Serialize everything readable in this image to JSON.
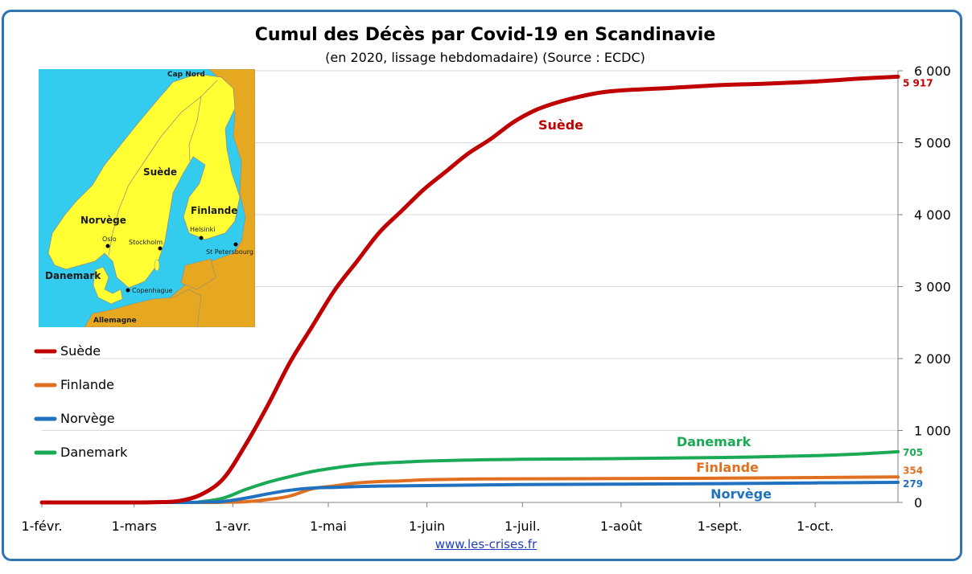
{
  "chart_data": {
    "type": "line",
    "title": "Cumul des Décès par Covid-19 en Scandinavie",
    "subtitle": "(en 2020, lissage hebdomadaire) (Source : ECDC)",
    "x_tick_labels": [
      "1-févr.",
      "1-mars",
      "1-avr.",
      "1-mai",
      "1-juin",
      "1-juil.",
      "1-août",
      "1-sept.",
      "1-oct."
    ],
    "x_tick_dates": [
      "2020-02-01",
      "2020-03-01",
      "2020-04-01",
      "2020-05-01",
      "2020-06-01",
      "2020-07-01",
      "2020-08-01",
      "2020-09-01",
      "2020-10-01"
    ],
    "x_range": [
      "2020-02-01",
      "2020-10-27"
    ],
    "y_axis_side": "right",
    "ylim": [
      0,
      6000
    ],
    "y_ticks": [
      0,
      1000,
      2000,
      3000,
      4000,
      5000,
      6000
    ],
    "y_tick_labels": [
      "0",
      "1 000",
      "2 000",
      "3 000",
      "4 000",
      "5 000",
      "6 000"
    ],
    "grid": "horizontal",
    "legend_position": "left",
    "series": [
      {
        "name": "Suède",
        "color": "#c00000",
        "inline_label": "Suède",
        "end_label": "5 917",
        "points": [
          [
            "2020-02-01",
            0
          ],
          [
            "2020-03-01",
            0
          ],
          [
            "2020-03-08",
            5
          ],
          [
            "2020-03-15",
            20
          ],
          [
            "2020-03-22",
            110
          ],
          [
            "2020-03-29",
            330
          ],
          [
            "2020-04-05",
            800
          ],
          [
            "2020-04-12",
            1350
          ],
          [
            "2020-04-19",
            1950
          ],
          [
            "2020-04-26",
            2450
          ],
          [
            "2020-05-03",
            2950
          ],
          [
            "2020-05-10",
            3350
          ],
          [
            "2020-05-17",
            3750
          ],
          [
            "2020-05-24",
            4050
          ],
          [
            "2020-05-31",
            4350
          ],
          [
            "2020-06-07",
            4600
          ],
          [
            "2020-06-14",
            4850
          ],
          [
            "2020-06-21",
            5050
          ],
          [
            "2020-06-28",
            5280
          ],
          [
            "2020-07-05",
            5450
          ],
          [
            "2020-07-12",
            5560
          ],
          [
            "2020-07-19",
            5640
          ],
          [
            "2020-07-26",
            5700
          ],
          [
            "2020-08-02",
            5730
          ],
          [
            "2020-08-16",
            5760
          ],
          [
            "2020-09-01",
            5800
          ],
          [
            "2020-09-15",
            5820
          ],
          [
            "2020-10-01",
            5850
          ],
          [
            "2020-10-15",
            5890
          ],
          [
            "2020-10-27",
            5917
          ]
        ]
      },
      {
        "name": "Finlande",
        "color": "#e07020",
        "inline_label": "Finlande",
        "end_label": "354",
        "points": [
          [
            "2020-02-01",
            0
          ],
          [
            "2020-03-22",
            0
          ],
          [
            "2020-03-29",
            3
          ],
          [
            "2020-04-05",
            10
          ],
          [
            "2020-04-12",
            40
          ],
          [
            "2020-04-19",
            90
          ],
          [
            "2020-04-26",
            190
          ],
          [
            "2020-05-03",
            230
          ],
          [
            "2020-05-10",
            270
          ],
          [
            "2020-05-17",
            290
          ],
          [
            "2020-05-24",
            300
          ],
          [
            "2020-06-01",
            315
          ],
          [
            "2020-06-15",
            325
          ],
          [
            "2020-07-01",
            328
          ],
          [
            "2020-08-01",
            333
          ],
          [
            "2020-09-01",
            337
          ],
          [
            "2020-10-01",
            346
          ],
          [
            "2020-10-27",
            354
          ]
        ]
      },
      {
        "name": "Norvège",
        "color": "#2072c0",
        "inline_label": "Norvège",
        "end_label": "279",
        "points": [
          [
            "2020-02-01",
            0
          ],
          [
            "2020-03-15",
            0
          ],
          [
            "2020-03-22",
            5
          ],
          [
            "2020-03-29",
            15
          ],
          [
            "2020-04-05",
            60
          ],
          [
            "2020-04-12",
            120
          ],
          [
            "2020-04-19",
            170
          ],
          [
            "2020-04-26",
            200
          ],
          [
            "2020-05-03",
            210
          ],
          [
            "2020-05-10",
            220
          ],
          [
            "2020-05-17",
            228
          ],
          [
            "2020-06-01",
            235
          ],
          [
            "2020-07-01",
            248
          ],
          [
            "2020-08-01",
            255
          ],
          [
            "2020-09-01",
            262
          ],
          [
            "2020-10-01",
            272
          ],
          [
            "2020-10-27",
            279
          ]
        ]
      },
      {
        "name": "Danemark",
        "color": "#1aaa55",
        "inline_label": "Danemark",
        "end_label": "705",
        "points": [
          [
            "2020-02-01",
            0
          ],
          [
            "2020-03-15",
            0
          ],
          [
            "2020-03-22",
            10
          ],
          [
            "2020-03-29",
            60
          ],
          [
            "2020-04-05",
            180
          ],
          [
            "2020-04-12",
            280
          ],
          [
            "2020-04-19",
            360
          ],
          [
            "2020-04-26",
            430
          ],
          [
            "2020-05-03",
            480
          ],
          [
            "2020-05-10",
            520
          ],
          [
            "2020-05-17",
            545
          ],
          [
            "2020-05-24",
            560
          ],
          [
            "2020-06-01",
            575
          ],
          [
            "2020-06-15",
            590
          ],
          [
            "2020-07-01",
            600
          ],
          [
            "2020-08-01",
            610
          ],
          [
            "2020-09-01",
            625
          ],
          [
            "2020-10-01",
            650
          ],
          [
            "2020-10-15",
            675
          ],
          [
            "2020-10-27",
            705
          ]
        ]
      }
    ],
    "legend": [
      "Suède",
      "Finlande",
      "Norvège",
      "Danemark"
    ]
  },
  "map": {
    "labels": {
      "cap": "Cap Nord",
      "suede": "Suède",
      "finlande": "Finlande",
      "norvege": "Norvège",
      "danemark": "Danemark",
      "allemagne": "Allemagne",
      "oslo": "Oslo",
      "stockholm": "Stockholm",
      "helsinki": "Helsinki",
      "stpetersbourg": "St Petersbourg",
      "copenhague": "Copenhague"
    },
    "colors": {
      "sea": "#33ccee",
      "scandinavia": "#ffff33",
      "other_land": "#e6a820",
      "border": "#8a8a8a"
    }
  },
  "source": {
    "text": "www.les-crises.fr"
  }
}
